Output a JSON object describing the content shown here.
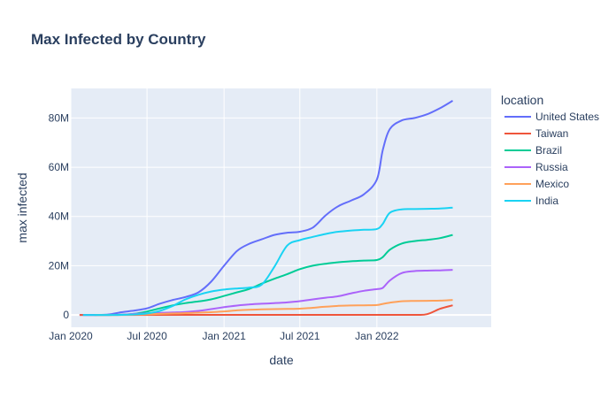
{
  "chart_data": {
    "type": "line",
    "title": "Max Infected by Country",
    "xlabel": "date",
    "ylabel": "max infected",
    "legend_title": "location",
    "legend_position": "right",
    "grid": true,
    "xlim": [
      "2020-01-01",
      "2022-10-01"
    ],
    "ylim": [
      -5000000,
      92000000
    ],
    "x_ticks": [
      {
        "date": "2020-01-01",
        "label": "Jan 2020"
      },
      {
        "date": "2020-07-01",
        "label": "Jul 2020"
      },
      {
        "date": "2021-01-01",
        "label": "Jan 2021"
      },
      {
        "date": "2021-07-01",
        "label": "Jul 2021"
      },
      {
        "date": "2022-01-01",
        "label": "Jan 2022"
      }
    ],
    "y_ticks": [
      {
        "value": 0,
        "label": "0"
      },
      {
        "value": 20000000,
        "label": "20M"
      },
      {
        "value": 40000000,
        "label": "40M"
      },
      {
        "value": 60000000,
        "label": "60M"
      },
      {
        "value": 80000000,
        "label": "80M"
      }
    ],
    "series": [
      {
        "name": "United States",
        "color": "#636efa",
        "points": [
          [
            "2020-01-22",
            0
          ],
          [
            "2020-03-01",
            0
          ],
          [
            "2020-04-01",
            200000
          ],
          [
            "2020-05-01",
            1100000
          ],
          [
            "2020-06-01",
            1800000
          ],
          [
            "2020-07-01",
            2700000
          ],
          [
            "2020-08-01",
            4600000
          ],
          [
            "2020-09-01",
            6100000
          ],
          [
            "2020-10-01",
            7300000
          ],
          [
            "2020-11-01",
            9200000
          ],
          [
            "2020-12-01",
            13500000
          ],
          [
            "2021-01-01",
            20000000
          ],
          [
            "2021-02-01",
            26000000
          ],
          [
            "2021-03-01",
            28800000
          ],
          [
            "2021-04-01",
            30700000
          ],
          [
            "2021-05-01",
            32500000
          ],
          [
            "2021-06-01",
            33400000
          ],
          [
            "2021-07-01",
            33800000
          ],
          [
            "2021-08-01",
            35500000
          ],
          [
            "2021-09-01",
            40500000
          ],
          [
            "2021-10-01",
            44200000
          ],
          [
            "2021-11-01",
            46500000
          ],
          [
            "2021-12-01",
            49000000
          ],
          [
            "2022-01-01",
            55000000
          ],
          [
            "2022-01-15",
            67000000
          ],
          [
            "2022-02-01",
            75500000
          ],
          [
            "2022-03-01",
            79000000
          ],
          [
            "2022-04-01",
            80000000
          ],
          [
            "2022-05-01",
            81500000
          ],
          [
            "2022-06-01",
            84000000
          ],
          [
            "2022-07-01",
            87000000
          ]
        ]
      },
      {
        "name": "Taiwan",
        "color": "#ef553b",
        "points": [
          [
            "2020-01-22",
            0
          ],
          [
            "2021-06-01",
            15000
          ],
          [
            "2022-01-01",
            18000
          ],
          [
            "2022-04-01",
            30000
          ],
          [
            "2022-05-01",
            300000
          ],
          [
            "2022-06-01",
            2500000
          ],
          [
            "2022-07-01",
            3900000
          ]
        ]
      },
      {
        "name": "Brazil",
        "color": "#00cc96",
        "points": [
          [
            "2020-02-26",
            0
          ],
          [
            "2020-04-01",
            10000
          ],
          [
            "2020-05-01",
            100000
          ],
          [
            "2020-06-01",
            500000
          ],
          [
            "2020-07-01",
            1400000
          ],
          [
            "2020-08-01",
            2700000
          ],
          [
            "2020-09-01",
            3900000
          ],
          [
            "2020-10-01",
            4800000
          ],
          [
            "2020-11-01",
            5500000
          ],
          [
            "2020-12-01",
            6300000
          ],
          [
            "2021-01-01",
            7700000
          ],
          [
            "2021-02-01",
            9200000
          ],
          [
            "2021-03-01",
            10500000
          ],
          [
            "2021-04-01",
            12700000
          ],
          [
            "2021-05-01",
            14700000
          ],
          [
            "2021-06-01",
            16600000
          ],
          [
            "2021-07-01",
            18600000
          ],
          [
            "2021-08-01",
            20000000
          ],
          [
            "2021-09-01",
            20800000
          ],
          [
            "2021-10-01",
            21400000
          ],
          [
            "2021-11-01",
            21800000
          ],
          [
            "2021-12-01",
            22100000
          ],
          [
            "2022-01-01",
            22300000
          ],
          [
            "2022-01-15",
            23500000
          ],
          [
            "2022-02-01",
            26500000
          ],
          [
            "2022-03-01",
            29000000
          ],
          [
            "2022-04-01",
            30000000
          ],
          [
            "2022-05-01",
            30500000
          ],
          [
            "2022-06-01",
            31200000
          ],
          [
            "2022-07-01",
            32500000
          ]
        ]
      },
      {
        "name": "Russia",
        "color": "#ab63fa",
        "points": [
          [
            "2020-01-31",
            0
          ],
          [
            "2020-04-01",
            3000
          ],
          [
            "2020-05-01",
            110000
          ],
          [
            "2020-06-01",
            420000
          ],
          [
            "2020-07-01",
            650000
          ],
          [
            "2020-08-01",
            850000
          ],
          [
            "2020-09-01",
            1000000
          ],
          [
            "2020-10-01",
            1200000
          ],
          [
            "2020-11-01",
            1650000
          ],
          [
            "2020-12-01",
            2350000
          ],
          [
            "2021-01-01",
            3150000
          ],
          [
            "2021-02-01",
            3800000
          ],
          [
            "2021-03-01",
            4250000
          ],
          [
            "2021-04-01",
            4550000
          ],
          [
            "2021-05-01",
            4800000
          ],
          [
            "2021-06-01",
            5100000
          ],
          [
            "2021-07-01",
            5600000
          ],
          [
            "2021-08-01",
            6300000
          ],
          [
            "2021-09-01",
            7000000
          ],
          [
            "2021-10-01",
            7600000
          ],
          [
            "2021-11-01",
            8800000
          ],
          [
            "2021-12-01",
            9800000
          ],
          [
            "2022-01-01",
            10500000
          ],
          [
            "2022-01-15",
            11000000
          ],
          [
            "2022-02-01",
            14000000
          ],
          [
            "2022-03-01",
            17000000
          ],
          [
            "2022-04-01",
            17800000
          ],
          [
            "2022-05-01",
            18000000
          ],
          [
            "2022-06-01",
            18100000
          ],
          [
            "2022-07-01",
            18300000
          ]
        ]
      },
      {
        "name": "Mexico",
        "color": "#ffa15a",
        "points": [
          [
            "2020-02-28",
            0
          ],
          [
            "2020-04-01",
            2000
          ],
          [
            "2020-05-01",
            20000
          ],
          [
            "2020-06-01",
            90000
          ],
          [
            "2020-07-01",
            230000
          ],
          [
            "2020-08-01",
            420000
          ],
          [
            "2020-09-01",
            600000
          ],
          [
            "2020-10-01",
            740000
          ],
          [
            "2020-11-01",
            930000
          ],
          [
            "2020-12-01",
            1110000
          ],
          [
            "2021-01-01",
            1430000
          ],
          [
            "2021-02-01",
            1850000
          ],
          [
            "2021-03-01",
            2090000
          ],
          [
            "2021-04-01",
            2240000
          ],
          [
            "2021-05-01",
            2360000
          ],
          [
            "2021-06-01",
            2420000
          ],
          [
            "2021-07-01",
            2560000
          ],
          [
            "2021-08-01",
            2900000
          ],
          [
            "2021-09-01",
            3350000
          ],
          [
            "2021-10-01",
            3680000
          ],
          [
            "2021-11-01",
            3830000
          ],
          [
            "2021-12-01",
            3900000
          ],
          [
            "2022-01-01",
            4000000
          ],
          [
            "2022-01-15",
            4500000
          ],
          [
            "2022-02-01",
            5000000
          ],
          [
            "2022-03-01",
            5550000
          ],
          [
            "2022-04-01",
            5700000
          ],
          [
            "2022-05-01",
            5750000
          ],
          [
            "2022-06-01",
            5800000
          ],
          [
            "2022-07-01",
            6100000
          ]
        ]
      },
      {
        "name": "India",
        "color": "#19d3f3",
        "points": [
          [
            "2020-01-30",
            0
          ],
          [
            "2020-04-01",
            2000
          ],
          [
            "2020-05-01",
            40000
          ],
          [
            "2020-06-01",
            200000
          ],
          [
            "2020-07-01",
            600000
          ],
          [
            "2020-08-01",
            1700000
          ],
          [
            "2020-09-01",
            3700000
          ],
          [
            "2020-10-01",
            6300000
          ],
          [
            "2020-11-01",
            8200000
          ],
          [
            "2020-12-01",
            9500000
          ],
          [
            "2021-01-01",
            10300000
          ],
          [
            "2021-02-01",
            10750000
          ],
          [
            "2021-03-01",
            11100000
          ],
          [
            "2021-04-01",
            12300000
          ],
          [
            "2021-05-01",
            19500000
          ],
          [
            "2021-06-01",
            28200000
          ],
          [
            "2021-07-01",
            30400000
          ],
          [
            "2021-08-01",
            31700000
          ],
          [
            "2021-09-01",
            32900000
          ],
          [
            "2021-10-01",
            33800000
          ],
          [
            "2021-11-01",
            34300000
          ],
          [
            "2021-12-01",
            34600000
          ],
          [
            "2022-01-01",
            34900000
          ],
          [
            "2022-01-15",
            37000000
          ],
          [
            "2022-02-01",
            41500000
          ],
          [
            "2022-03-01",
            42900000
          ],
          [
            "2022-04-01",
            43000000
          ],
          [
            "2022-05-01",
            43100000
          ],
          [
            "2022-06-01",
            43200000
          ],
          [
            "2022-07-01",
            43600000
          ]
        ]
      }
    ]
  }
}
